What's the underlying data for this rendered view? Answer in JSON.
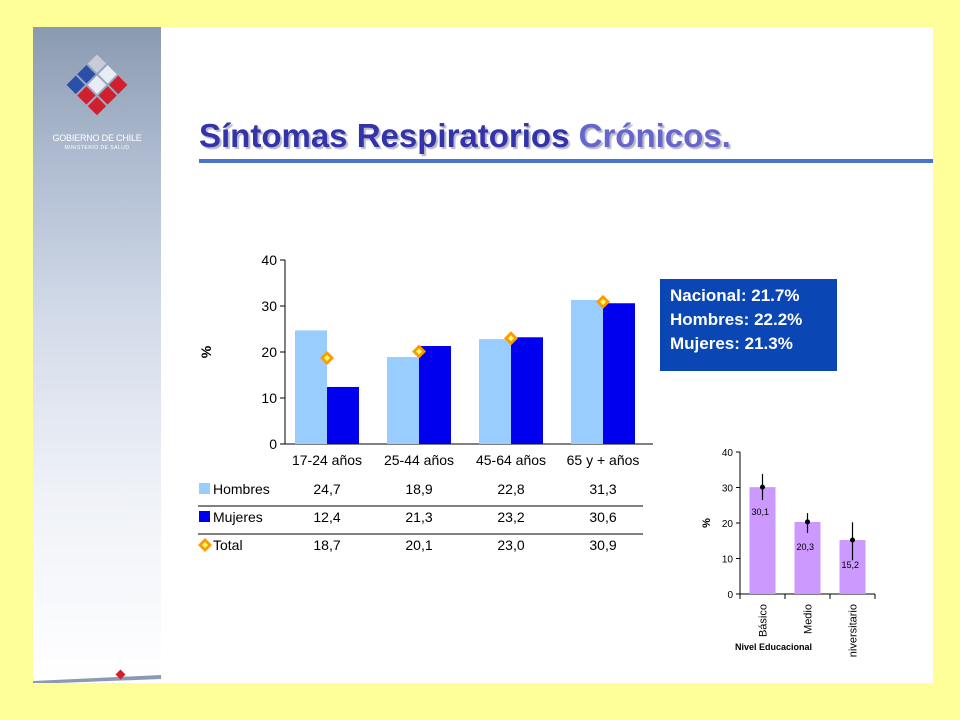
{
  "header": {
    "logo_line1": "GOBIERNO DE CHILE",
    "logo_line2": "MINISTERIO DE SALUD",
    "title_main": "Síntomas Respiratorios ",
    "title_accent": "Crónicos."
  },
  "info_box": {
    "line1": "Nacional: 21.7%",
    "line2": "Hombres: 22.2%",
    "line3": "Mujeres:  21.3%"
  },
  "colors": {
    "hombres": "#99ccff",
    "mujeres": "#0000ee",
    "total_marker": "#ff9900",
    "edu_bars": "#cc99ff",
    "title": "#3333aa",
    "info_box": "#0a47b4",
    "background": "#ffff99"
  },
  "chart_data": [
    {
      "type": "bar",
      "ylabel": "%",
      "ylim": [
        0,
        40
      ],
      "yticks": [
        "0",
        "10",
        "20",
        "30",
        "40"
      ],
      "categories": [
        "17-24 años",
        "25-44 años",
        "45-64 años",
        "65 y + años"
      ],
      "series": [
        {
          "name": "Hombres",
          "values": [
            24.7,
            18.9,
            22.8,
            31.3
          ],
          "labels": [
            "24,7",
            "18,9",
            "22,8",
            "31,3"
          ]
        },
        {
          "name": "Mujeres",
          "values": [
            12.4,
            21.3,
            23.2,
            30.6
          ],
          "labels": [
            "12,4",
            "21,3",
            "23,2",
            "30,6"
          ]
        },
        {
          "name": "Total",
          "values": [
            18.7,
            20.1,
            23.0,
            30.9
          ],
          "labels": [
            "18,7",
            "20,1",
            "23,0",
            "30,9"
          ],
          "marker": "diamond"
        }
      ],
      "legend": "data-table-below"
    },
    {
      "type": "bar",
      "xlabel": "Nivel Educacional",
      "ylabel": "%",
      "ylim": [
        0,
        40
      ],
      "yticks": [
        "0",
        "10",
        "20",
        "30",
        "40"
      ],
      "categories": [
        "Básico",
        "Medio",
        "Universitario"
      ],
      "values": [
        30.1,
        20.3,
        15.2
      ],
      "labels": [
        "30,1",
        "20,3",
        "15,2"
      ],
      "error_bars": [
        [
          26.5,
          33.8
        ],
        [
          17.2,
          22.8
        ],
        [
          9.5,
          20.2
        ]
      ]
    }
  ]
}
